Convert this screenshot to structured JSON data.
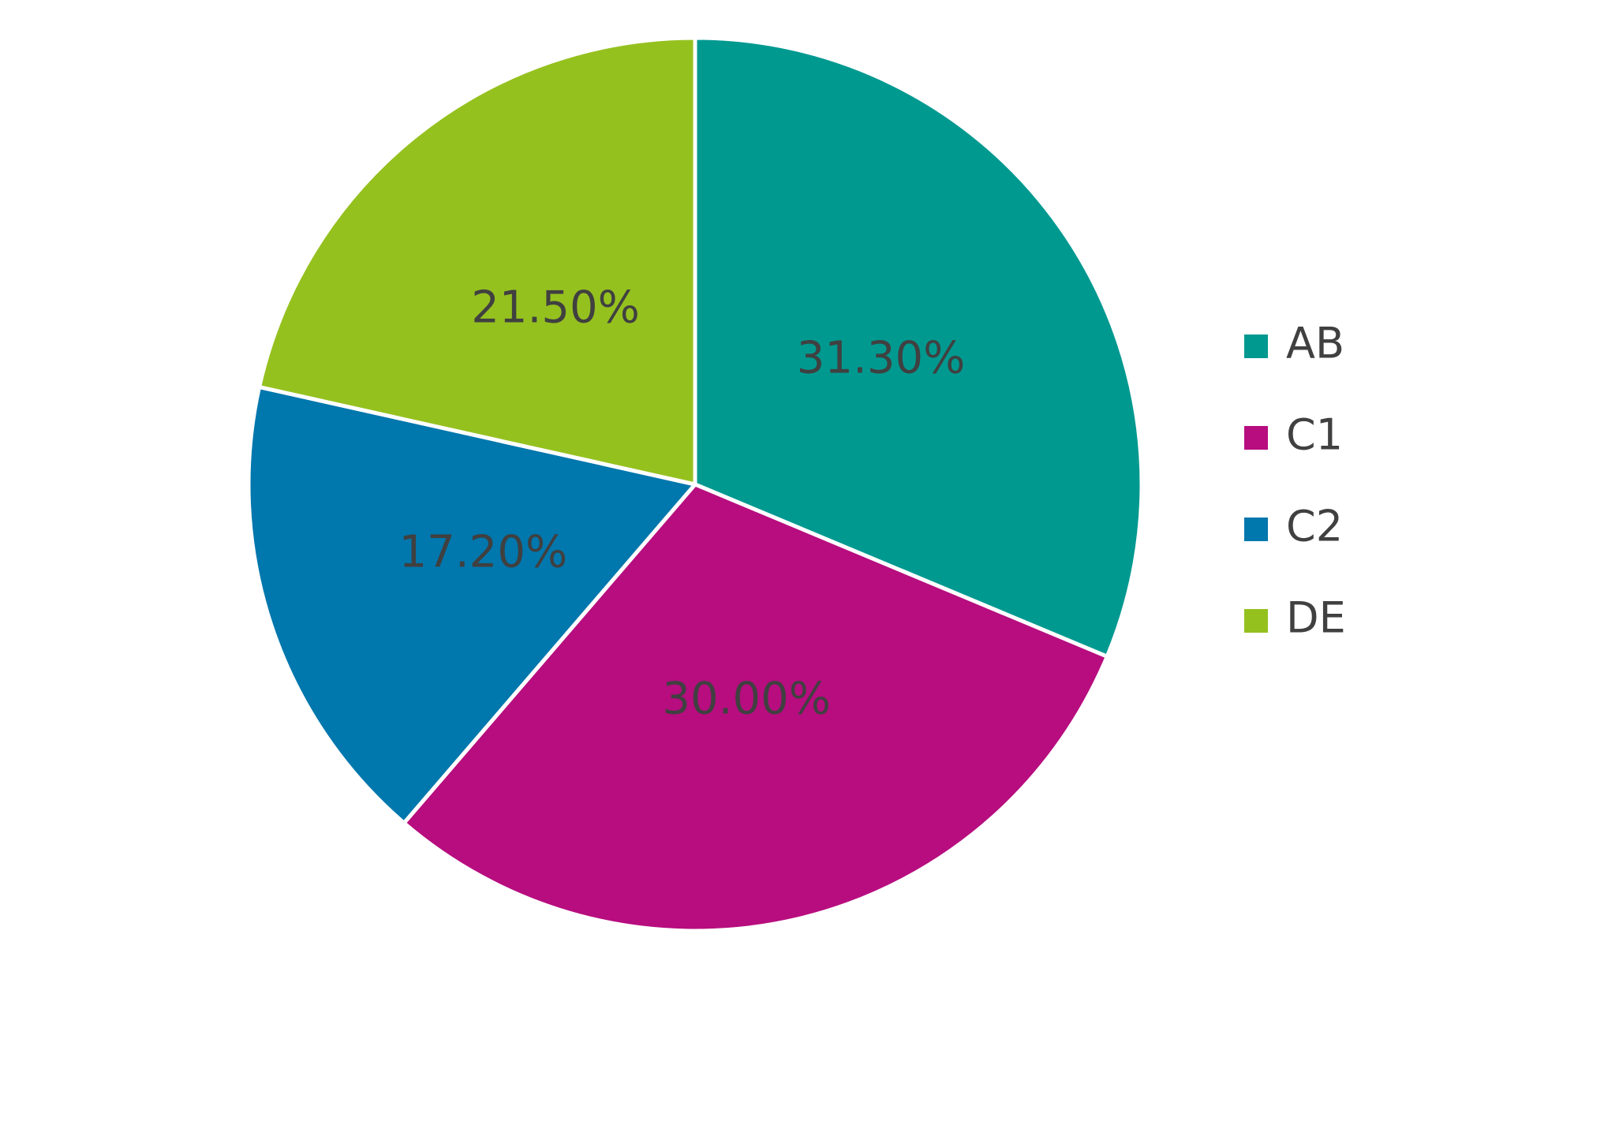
{
  "chart_data": {
    "type": "pie",
    "categories": [
      "AB",
      "C1",
      "C2",
      "DE"
    ],
    "values": [
      31.3,
      30.0,
      17.2,
      21.5
    ],
    "value_labels": [
      "31.30%",
      "30.00%",
      "17.20%",
      "21.50%"
    ],
    "colors": [
      "#009990",
      "#b70d7f",
      "#0077ad",
      "#95c11f"
    ],
    "legend": "right"
  }
}
